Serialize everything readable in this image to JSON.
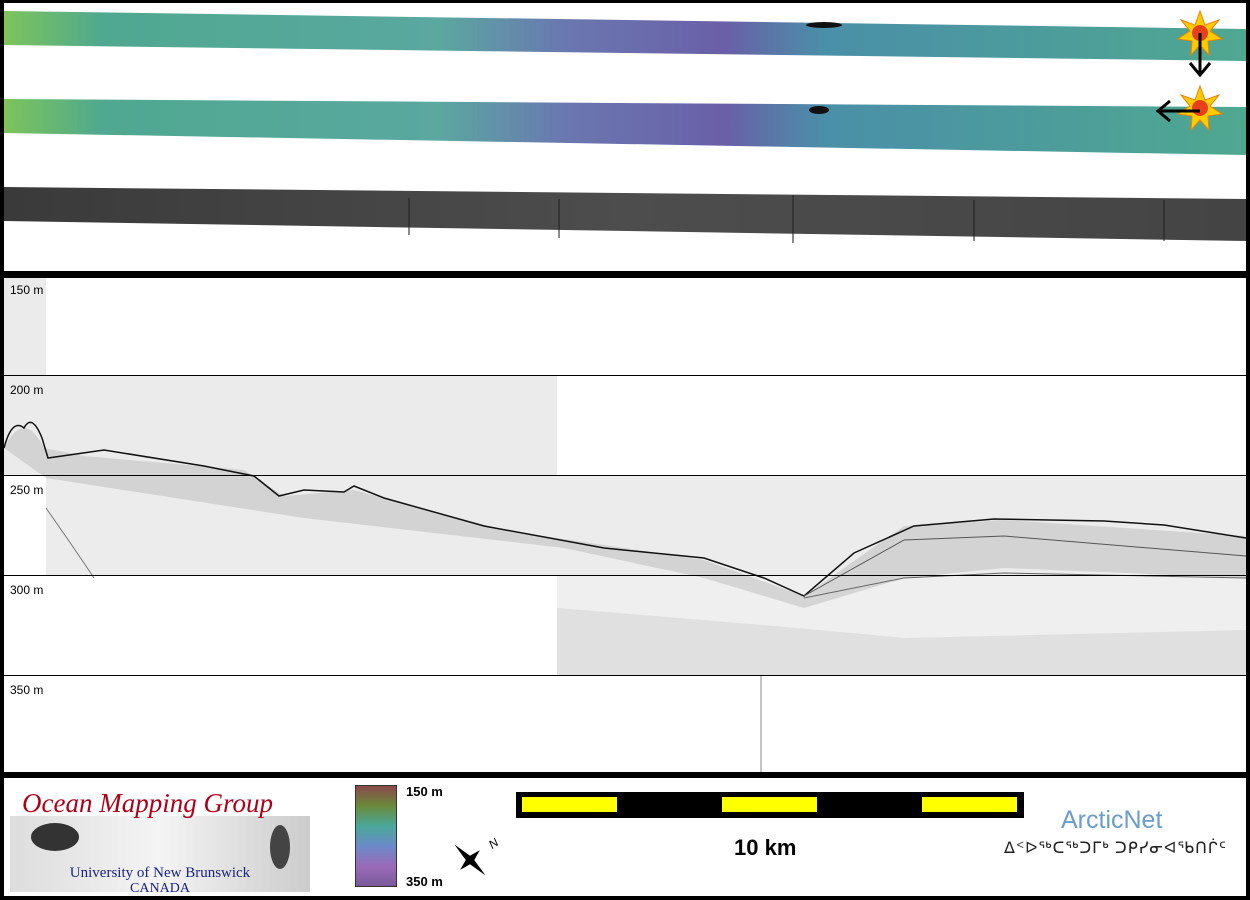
{
  "profile": {
    "depth_labels": [
      "150 m",
      "200 m",
      "250 m",
      "300 m",
      "350 m"
    ]
  },
  "legend": {
    "logo_title": "Ocean Mapping Group",
    "logo_university": "University of New Brunswick",
    "logo_country": "CANADA",
    "colorbar_top": "150 m",
    "colorbar_bottom": "350 m",
    "north_label": "N",
    "scale_label": "10 km",
    "partner_name": "ArcticNet",
    "partner_syllabics": "ᐃᑉᐅᖅᑕᖅᑐᒥᒃ ᑐᑭᓯᓂᐊᖃᑎᒌᑦ"
  },
  "colors": {
    "swath_green": "#4fa890",
    "swath_purple": "#6a5fa8",
    "backscatter": "#555555",
    "scale_yellow": "#ffff00",
    "logo_red": "#b00018",
    "partner_blue": "#6a9dcb"
  },
  "icons": [
    "sun-icon",
    "arrow-down-icon",
    "arrow-left-icon",
    "north-arrow-icon"
  ]
}
